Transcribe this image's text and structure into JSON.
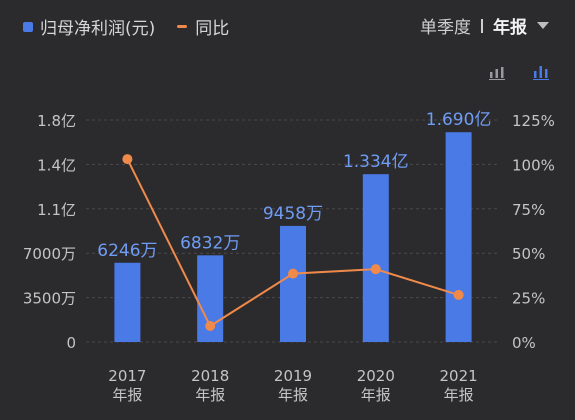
{
  "legend": {
    "bar_label": "归母净利润(元)",
    "line_label": "同比"
  },
  "period_toggle": {
    "option_quarter": "单季度",
    "option_annual": "年报",
    "active": "年报"
  },
  "icons": [
    "bar-chart-icon-alt",
    "bar-chart-icon"
  ],
  "colors": {
    "bar": "#4a7ae6",
    "line": "#f08a4b",
    "bar_label": "#6f9cf5"
  },
  "chart_data": {
    "type": "bar",
    "categories": [
      "2017",
      "2018",
      "2019",
      "2020",
      "2021"
    ],
    "category_sublabel": "年报",
    "series": [
      {
        "name": "归母净利润(元)",
        "type": "bar",
        "axis": "left",
        "values": [
          62460000,
          68320000,
          94580000,
          133400000,
          169000000
        ],
        "labels": [
          "6246万",
          "6832万",
          "9458万",
          "1.334亿",
          "1.690亿"
        ]
      },
      {
        "name": "同比",
        "type": "line",
        "axis": "right",
        "values": [
          103,
          9,
          38.5,
          41,
          26.5
        ]
      }
    ],
    "left_axis": {
      "ticks": [
        0,
        35000000,
        70000000,
        110000000,
        140000000,
        180000000
      ],
      "tick_labels": [
        "0",
        "3500万",
        "7000万",
        "1.1亿",
        "1.4亿",
        "1.8亿"
      ]
    },
    "right_axis": {
      "ticks": [
        0,
        25,
        50,
        75,
        100,
        125
      ],
      "tick_labels": [
        "0%",
        "25%",
        "50%",
        "75%",
        "100%",
        "125%"
      ]
    },
    "grid": true
  }
}
